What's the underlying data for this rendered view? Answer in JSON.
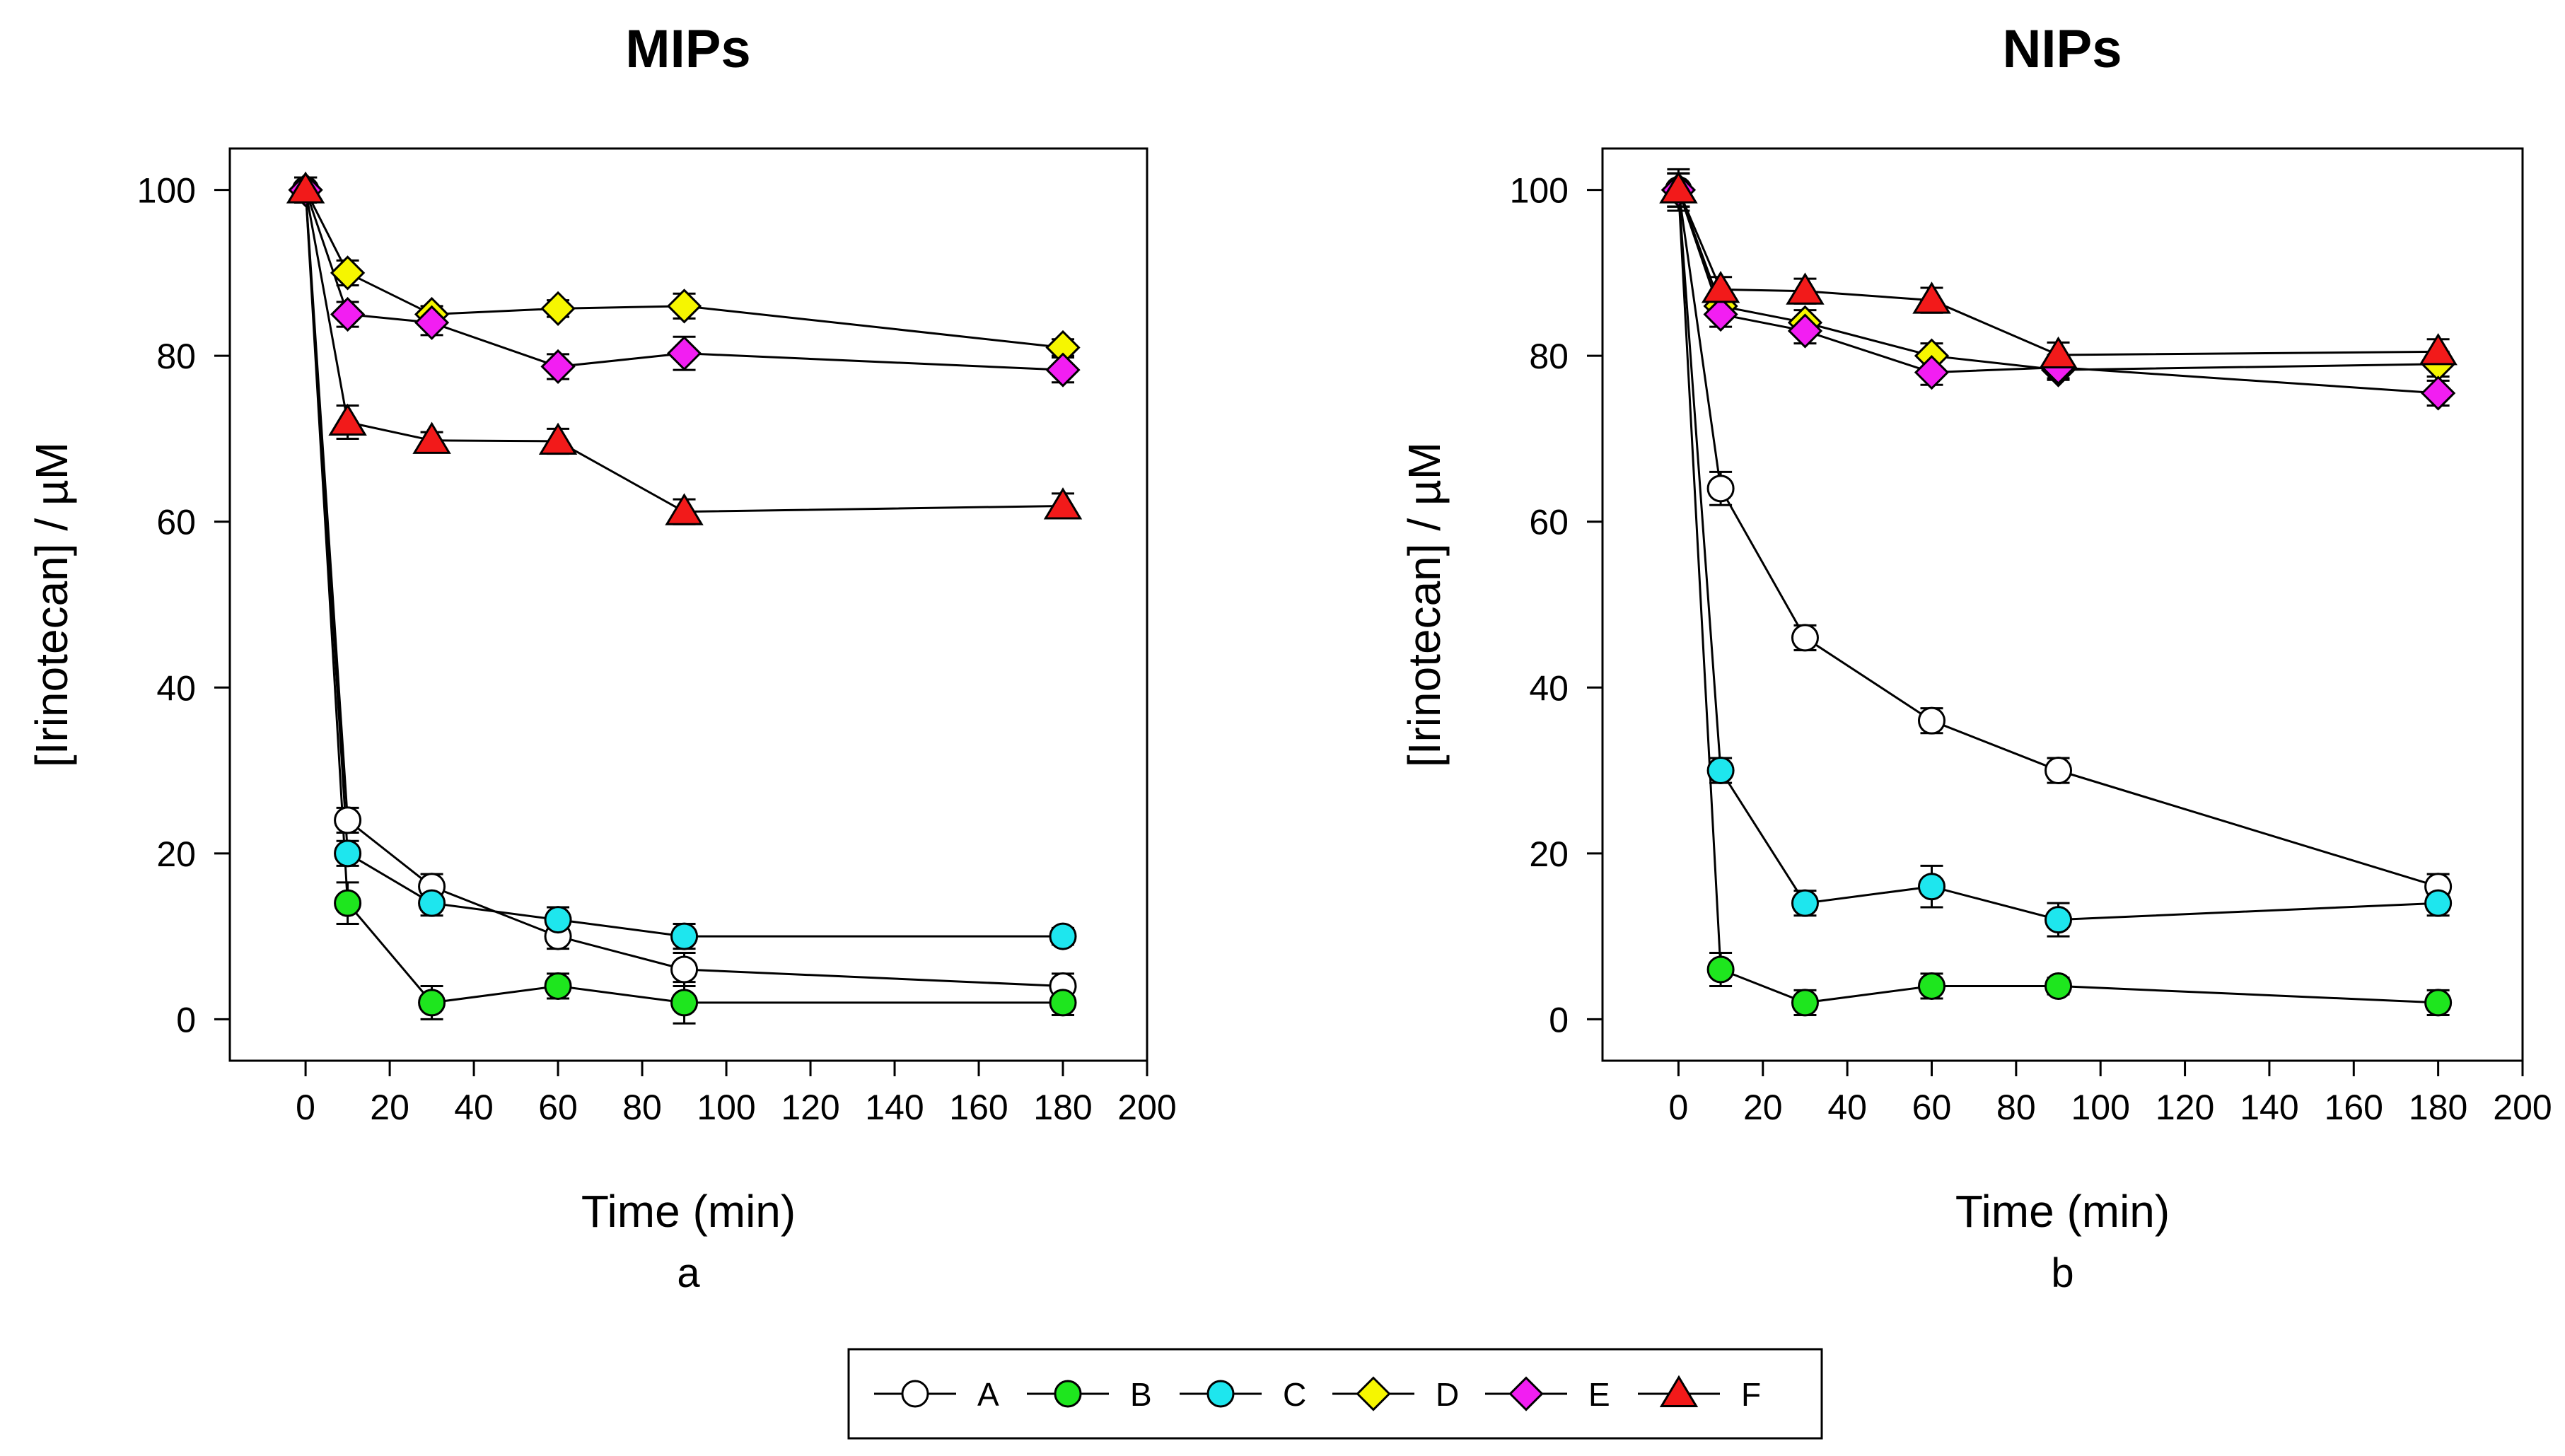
{
  "chart_data": [
    {
      "type": "line",
      "title": "MIPs",
      "panel_label": "a",
      "xlabel": "Time (min)",
      "ylabel": "[Irinotecan] / µM",
      "xlim": [
        -18,
        200
      ],
      "ylim": [
        -5,
        105
      ],
      "xticks": [
        0,
        20,
        40,
        60,
        80,
        100,
        120,
        140,
        160,
        180,
        200
      ],
      "yticks": [
        0,
        20,
        40,
        60,
        80,
        100
      ],
      "series": [
        {
          "name": "A",
          "x": [
            0,
            10,
            30,
            60,
            90,
            180
          ],
          "values": [
            100,
            24,
            16,
            10,
            6,
            4
          ],
          "errors": [
            1.5,
            1.5,
            1.5,
            1.5,
            2,
            1.5
          ]
        },
        {
          "name": "B",
          "x": [
            0,
            10,
            30,
            60,
            90,
            180
          ],
          "values": [
            100,
            14,
            2,
            4,
            2,
            2
          ],
          "errors": [
            1.5,
            2.5,
            2,
            1.5,
            2.5,
            1.5
          ]
        },
        {
          "name": "C",
          "x": [
            0,
            10,
            30,
            60,
            90,
            180
          ],
          "values": [
            100,
            20,
            14,
            12,
            10,
            10
          ],
          "errors": [
            1.5,
            1.5,
            1.5,
            1.5,
            1.5,
            1
          ]
        },
        {
          "name": "D",
          "x": [
            0,
            10,
            30,
            60,
            90,
            180
          ],
          "values": [
            100,
            90,
            85,
            85.7,
            86,
            81
          ],
          "errors": [
            1.5,
            1.5,
            1,
            1,
            1.5,
            1
          ]
        },
        {
          "name": "E",
          "x": [
            0,
            10,
            30,
            60,
            90,
            180
          ],
          "values": [
            100,
            85,
            84,
            78.7,
            80.3,
            78.3
          ],
          "errors": [
            1.5,
            1.5,
            1.5,
            1.5,
            2,
            1.5
          ]
        },
        {
          "name": "F",
          "x": [
            0,
            10,
            30,
            60,
            90,
            180
          ],
          "values": [
            100,
            72,
            69.8,
            69.7,
            61.2,
            61.9
          ],
          "errors": [
            1.5,
            2,
            1,
            1.5,
            1.5,
            1.5
          ]
        }
      ]
    },
    {
      "type": "line",
      "title": "NIPs",
      "panel_label": "b",
      "xlabel": "Time (min)",
      "ylabel": "[Irinotecan] / µM",
      "xlim": [
        -18,
        200
      ],
      "ylim": [
        -5,
        105
      ],
      "xticks": [
        0,
        20,
        40,
        60,
        80,
        100,
        120,
        140,
        160,
        180,
        200
      ],
      "yticks": [
        0,
        20,
        40,
        60,
        80,
        100
      ],
      "series": [
        {
          "name": "A",
          "x": [
            0,
            10,
            30,
            60,
            90,
            180
          ],
          "values": [
            100,
            64,
            46,
            36,
            30,
            16
          ],
          "errors": [
            2,
            2,
            1.5,
            1.5,
            1.5,
            1.5
          ]
        },
        {
          "name": "B",
          "x": [
            0,
            10,
            30,
            60,
            90,
            180
          ],
          "values": [
            100,
            6,
            2,
            4,
            4,
            2
          ],
          "errors": [
            2,
            2,
            1.5,
            1.5,
            1,
            1.5
          ]
        },
        {
          "name": "C",
          "x": [
            0,
            10,
            30,
            60,
            90,
            180
          ],
          "values": [
            100,
            30,
            14,
            16,
            12,
            14
          ],
          "errors": [
            2,
            1.5,
            1.5,
            2.5,
            2,
            1.5
          ]
        },
        {
          "name": "D",
          "x": [
            0,
            10,
            30,
            60,
            90,
            180
          ],
          "values": [
            100,
            86,
            84,
            80,
            78.3,
            79
          ],
          "errors": [
            2,
            1.5,
            1.5,
            1.5,
            1,
            1.5
          ]
        },
        {
          "name": "E",
          "x": [
            0,
            10,
            30,
            60,
            90,
            180
          ],
          "values": [
            100,
            85,
            83,
            78,
            78.6,
            75.5
          ],
          "errors": [
            2,
            1.5,
            1.5,
            1.5,
            1.5,
            1.5
          ]
        },
        {
          "name": "F",
          "x": [
            0,
            10,
            30,
            60,
            90,
            180
          ],
          "values": [
            100,
            88,
            87.8,
            86.7,
            80.1,
            80.5
          ],
          "errors": [
            2.5,
            1.5,
            1.5,
            1.5,
            1.5,
            1.5
          ]
        }
      ]
    }
  ],
  "legend": {
    "placement": "bottom-center",
    "entries": [
      {
        "label": "A",
        "marker": "circle",
        "color": "#ffffff"
      },
      {
        "label": "B",
        "marker": "circle",
        "color": "#1ee61e"
      },
      {
        "label": "C",
        "marker": "circle",
        "color": "#1ee6ee"
      },
      {
        "label": "D",
        "marker": "diamond",
        "color": "#f6f600"
      },
      {
        "label": "E",
        "marker": "diamond",
        "color": "#f21ef2"
      },
      {
        "label": "F",
        "marker": "triangle",
        "color": "#f21a1a"
      }
    ]
  }
}
